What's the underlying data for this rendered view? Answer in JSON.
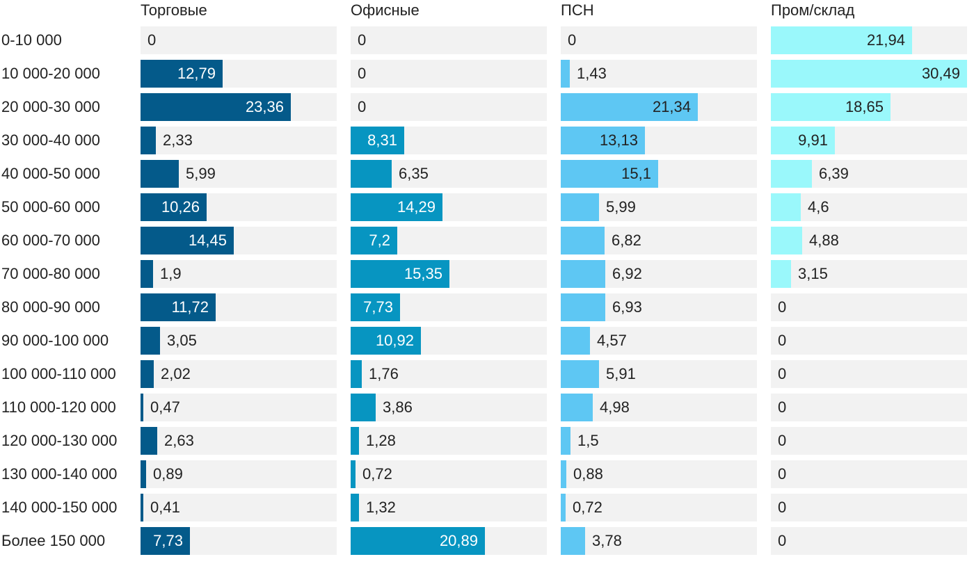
{
  "chart_data": {
    "type": "bar",
    "orientation": "horizontal",
    "categories": [
      "0-10 000",
      "10 000-20 000",
      "20 000-30 000",
      "30 000-40 000",
      "40 000-50 000",
      "50 000-60 000",
      "60 000-70 000",
      "70 000-80 000",
      "80 000-90 000",
      "90 000-100 000",
      "100 000-110 000",
      "110 000-120 000",
      "120 000-130 000",
      "130 000-140 000",
      "140 000-150 000",
      "Более 150 000"
    ],
    "series": [
      {
        "name": "Торговые",
        "color": "#045a8a",
        "label_color_inside": "#ffffff",
        "values": [
          0,
          12.79,
          23.36,
          2.33,
          5.99,
          10.26,
          14.45,
          1.9,
          11.72,
          3.05,
          2.02,
          0.47,
          2.63,
          0.89,
          0.41,
          7.73
        ],
        "labels": [
          "0",
          "12,79",
          "23,36",
          "2,33",
          "5,99",
          "10,26",
          "14,45",
          "1,9",
          "11,72",
          "3,05",
          "2,02",
          "0,47",
          "2,63",
          "0,89",
          "0,41",
          "7,73"
        ]
      },
      {
        "name": "Офисные",
        "color": "#0795c1",
        "label_color_inside": "#ffffff",
        "values": [
          0,
          0,
          0,
          8.31,
          6.35,
          14.29,
          7.2,
          15.35,
          7.73,
          10.92,
          1.76,
          3.86,
          1.28,
          0.72,
          1.32,
          20.89
        ],
        "labels": [
          "0",
          "0",
          "0",
          "8,31",
          "6,35",
          "14,29",
          "7,2",
          "15,35",
          "7,73",
          "10,92",
          "1,76",
          "3,86",
          "1,28",
          "0,72",
          "1,32",
          "20,89"
        ]
      },
      {
        "name": "ПСН",
        "color": "#5ec7f3",
        "label_color_inside": "#222222",
        "values": [
          0,
          1.43,
          21.34,
          13.13,
          15.1,
          5.99,
          6.82,
          6.92,
          6.93,
          4.57,
          5.91,
          4.98,
          1.5,
          0.88,
          0.72,
          3.78
        ],
        "labels": [
          "0",
          "1,43",
          "21,34",
          "13,13",
          "15,1",
          "5,99",
          "6,82",
          "6,92",
          "6,93",
          "4,57",
          "5,91",
          "4,98",
          "1,5",
          "0,88",
          "0,72",
          "3,78"
        ]
      },
      {
        "name": "Пром/склад",
        "color": "#9af8fb",
        "label_color_inside": "#222222",
        "values": [
          21.94,
          30.49,
          18.65,
          9.91,
          6.39,
          4.6,
          4.88,
          3.15,
          0,
          0,
          0,
          0,
          0,
          0,
          0,
          0
        ],
        "labels": [
          "21,94",
          "30,49",
          "18,65",
          "9,91",
          "6,39",
          "4,6",
          "4,88",
          "3,15",
          "0",
          "0",
          "0",
          "0",
          "0",
          "0",
          "0",
          "0"
        ]
      }
    ],
    "track_color": "#f2f2f2",
    "label_color_outside": "#222222",
    "legend": "none",
    "grid": false
  }
}
